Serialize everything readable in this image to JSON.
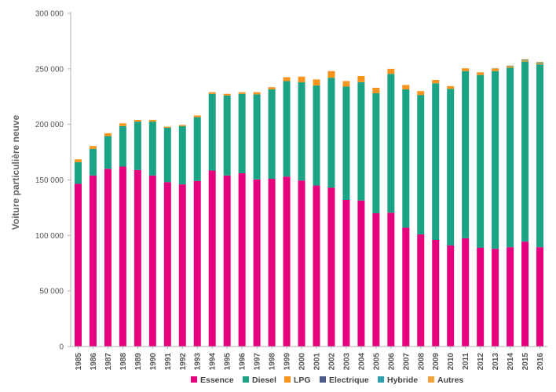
{
  "chart_data": {
    "type": "bar",
    "stacked": true,
    "title": "",
    "xlabel": "",
    "ylabel": "Voiture particulière neuve",
    "ylim": [
      0,
      300000
    ],
    "yticks": [
      0,
      50000,
      100000,
      150000,
      200000,
      250000,
      300000
    ],
    "ytick_labels": [
      "0",
      "50 000",
      "100 000",
      "150 000",
      "200 000",
      "250 000",
      "300 000"
    ],
    "grid": false,
    "legend_position": "bottom",
    "categories": [
      "1985",
      "1986",
      "1987",
      "1988",
      "1989",
      "1990",
      "1991",
      "1992",
      "1993",
      "1994",
      "1995",
      "1996",
      "1997",
      "1998",
      "1999",
      "2000",
      "2001",
      "2002",
      "2003",
      "2004",
      "2005",
      "2006",
      "2007",
      "2008",
      "2009",
      "2010",
      "2011",
      "2012",
      "2013",
      "2014",
      "2015",
      "2016"
    ],
    "series": [
      {
        "name": "Essence",
        "color": "#e6007e",
        "values": [
          146500,
          154000,
          160000,
          162000,
          159000,
          154000,
          148000,
          146000,
          149000,
          158500,
          154000,
          156000,
          150500,
          151000,
          153000,
          149500,
          145000,
          143000,
          132000,
          131500,
          120000,
          120500,
          107000,
          101000,
          96000,
          91000,
          97500,
          89000,
          88000,
          89500,
          94500,
          89500
        ]
      },
      {
        "name": "Diesel",
        "color": "#1aa385",
        "values": [
          19500,
          24000,
          29500,
          36500,
          43500,
          48500,
          49000,
          52500,
          57500,
          69000,
          72000,
          71500,
          76500,
          80500,
          86000,
          88500,
          90000,
          99000,
          102000,
          106500,
          108000,
          125000,
          124500,
          125500,
          141000,
          141000,
          150500,
          155500,
          160000,
          161500,
          162000,
          164500
        ]
      },
      {
        "name": "LPG",
        "color": "#f7941d",
        "values": [
          2500,
          2500,
          2500,
          2500,
          1500,
          1500,
          1000,
          1000,
          1500,
          1500,
          1500,
          1500,
          2000,
          2000,
          3500,
          5000,
          5500,
          6000,
          5000,
          5500,
          5000,
          4500,
          4000,
          3500,
          3000,
          2500,
          2500,
          2000,
          2000,
          1000,
          1000,
          1000
        ]
      },
      {
        "name": "Electrique",
        "color": "#4a5a8a",
        "values": [
          0,
          0,
          0,
          0,
          0,
          0,
          0,
          0,
          0,
          0,
          0,
          0,
          0,
          0,
          0,
          0,
          0,
          0,
          0,
          0,
          0,
          0,
          0,
          0,
          0,
          0,
          0,
          0,
          0,
          0,
          0,
          0
        ]
      },
      {
        "name": "Hybride",
        "color": "#2e9fae",
        "values": [
          0,
          0,
          0,
          0,
          0,
          0,
          0,
          0,
          0,
          0,
          0,
          0,
          0,
          0,
          0,
          0,
          0,
          0,
          0,
          0,
          0,
          0,
          0,
          0,
          0,
          0,
          0,
          0,
          200,
          500,
          800,
          800
        ]
      },
      {
        "name": "Autres",
        "color": "#f2a23a",
        "values": [
          0,
          0,
          0,
          0,
          0,
          0,
          0,
          0,
          0,
          0,
          0,
          0,
          0,
          0,
          0,
          0,
          0,
          0,
          0,
          0,
          0,
          0,
          0,
          0,
          0,
          0,
          0,
          500,
          500,
          500,
          500,
          500
        ]
      }
    ]
  }
}
